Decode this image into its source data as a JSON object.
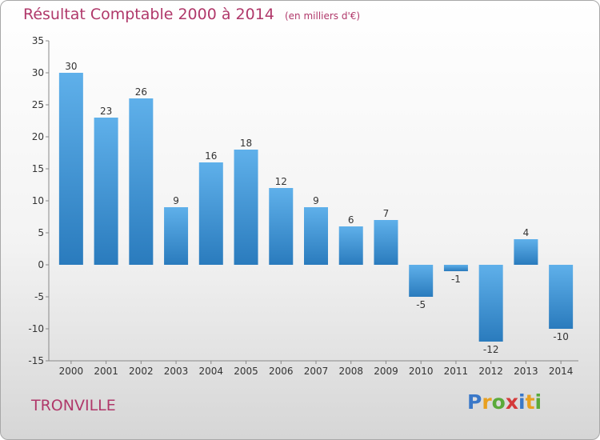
{
  "header": {
    "title": "Résultat Comptable 2000 à 2014",
    "subtitle": "(en milliers d'€)"
  },
  "footer": {
    "commune": "TRONVILLE",
    "logo_letters": [
      "P",
      "r",
      "o",
      "x",
      "i",
      "t",
      "i"
    ],
    "logo_colors": [
      "#3a78c8",
      "#e8a020",
      "#5aaa3a",
      "#d43a3a",
      "#3a78c8",
      "#e8a020",
      "#5aaa3a"
    ]
  },
  "chart_data": {
    "type": "bar",
    "categories": [
      "2000",
      "2001",
      "2002",
      "2003",
      "2004",
      "2005",
      "2006",
      "2007",
      "2008",
      "2009",
      "2010",
      "2011",
      "2012",
      "2013",
      "2014"
    ],
    "values": [
      30,
      23,
      26,
      9,
      16,
      18,
      12,
      9,
      6,
      7,
      -5,
      -1,
      -12,
      4,
      -10
    ],
    "labels": [
      "30",
      "23",
      "26",
      "9",
      "16",
      "18",
      "12",
      "9",
      "6",
      "7",
      "-5",
      "-1",
      "-12",
      "4",
      "-10"
    ],
    "ylim": [
      -15,
      35
    ],
    "yticks": [
      "-15",
      "-10",
      "-5",
      "0",
      "5",
      "10",
      "15",
      "20",
      "25",
      "30",
      "35"
    ],
    "grid": false,
    "bar_color_top": "#5fb0ea",
    "bar_color_bottom": "#2a7bbd"
  }
}
